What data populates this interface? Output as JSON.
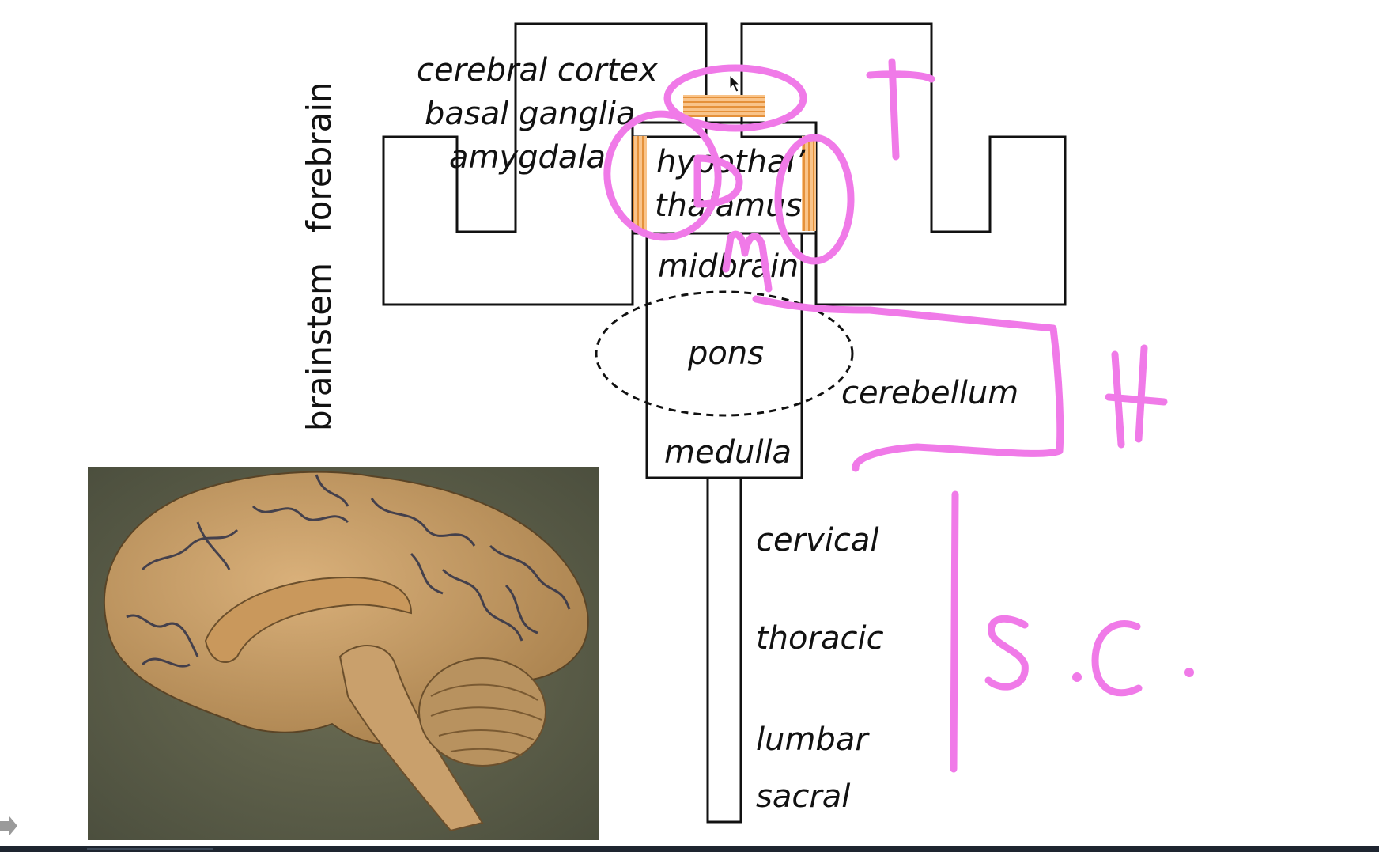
{
  "regions": {
    "forebrain": "forebrain",
    "brainstem": "brainstem"
  },
  "labels": {
    "cerebral_cortex": "cerebral cortex",
    "basal_ganglia": "basal ganglia",
    "amygdala": "amygdala",
    "hypothal": "hypothal’",
    "thalamus": "thalamus",
    "midbrain": "midbrain",
    "pons": "pons",
    "cerebellum": "cerebellum",
    "medulla": "medulla",
    "cervical": "cervical",
    "thoracic": "thoracic",
    "lumbar": "lumbar",
    "sacral": "sacral"
  },
  "annotations": {
    "letter_t": "T",
    "letter_d": "D",
    "letter_m": "m",
    "letter_h": "H",
    "sc": "s.c."
  },
  "colors": {
    "annotation_pink": "#f07ae8",
    "highlight_orange": "#f6a64c"
  },
  "photo": {
    "icon": "brain-midsagittal-photo"
  }
}
